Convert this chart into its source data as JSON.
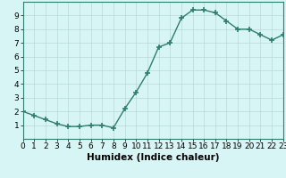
{
  "x": [
    0,
    1,
    2,
    3,
    4,
    5,
    6,
    7,
    8,
    9,
    10,
    11,
    12,
    13,
    14,
    15,
    16,
    17,
    18,
    19,
    20,
    21,
    22,
    23
  ],
  "y": [
    2.0,
    1.7,
    1.4,
    1.1,
    0.9,
    0.9,
    1.0,
    1.0,
    0.8,
    2.2,
    3.4,
    4.8,
    6.7,
    7.0,
    8.8,
    9.4,
    9.4,
    9.2,
    8.6,
    8.0,
    8.0,
    7.6,
    7.2,
    7.6
  ],
  "line_color": "#2e7d6e",
  "marker": "+",
  "marker_size": 4,
  "bg_color": "#d8f5f5",
  "grid_color": "#b8d8d8",
  "xlabel": "Humidex (Indice chaleur)",
  "xlim": [
    0,
    23
  ],
  "ylim": [
    0,
    10
  ],
  "yticks": [
    1,
    2,
    3,
    4,
    5,
    6,
    7,
    8,
    9
  ],
  "xticks": [
    0,
    1,
    2,
    3,
    4,
    5,
    6,
    7,
    8,
    9,
    10,
    11,
    12,
    13,
    14,
    15,
    16,
    17,
    18,
    19,
    20,
    21,
    22,
    23
  ],
  "xlabel_fontsize": 7.5,
  "tick_fontsize": 6.5,
  "line_width": 1.0,
  "marker_color": "#2e7d6e"
}
